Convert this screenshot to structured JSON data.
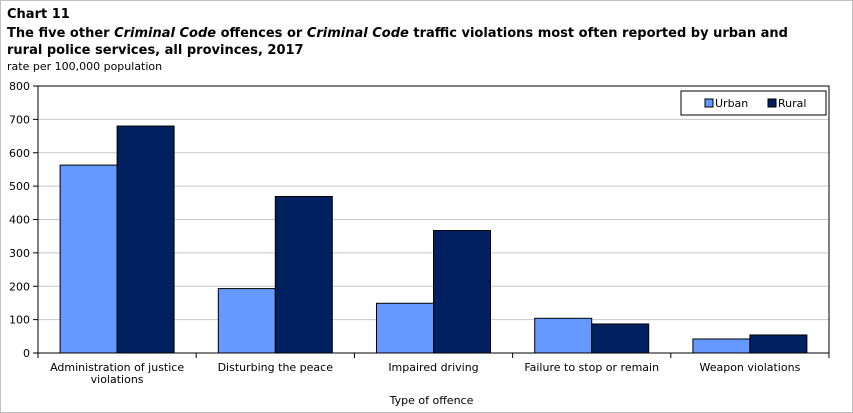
{
  "header": {
    "chart_number": "Chart 11",
    "title_parts": [
      {
        "text": "The five other ",
        "italic": false
      },
      {
        "text": "Criminal Code",
        "italic": true
      },
      {
        "text": " offences or ",
        "italic": false
      },
      {
        "text": "Criminal Code",
        "italic": true
      },
      {
        "text": " traffic violations most often reported by urban and rural police services, all provinces, 2017",
        "italic": false
      }
    ],
    "unit": "rate per 100,000 population"
  },
  "chart_data": {
    "type": "bar",
    "title": "The five other Criminal Code offences or Criminal Code traffic violations most often reported by urban and rural police services, all provinces, 2017",
    "ylabel": "rate per 100,000 population",
    "xlabel": "Type of offence",
    "categories": [
      [
        "Administration of justice",
        "violations"
      ],
      [
        "Disturbing the peace"
      ],
      [
        "Impaired driving"
      ],
      [
        "Failure to stop or remain"
      ],
      [
        "Weapon violations"
      ]
    ],
    "series": [
      {
        "name": "Urban",
        "color": "#6699ff",
        "values": [
          563,
          193,
          149,
          104,
          42
        ]
      },
      {
        "name": "Rural",
        "color": "#002060",
        "values": [
          680,
          469,
          367,
          87,
          54
        ]
      }
    ],
    "ylim": [
      0,
      800
    ],
    "yticks": [
      0,
      100,
      200,
      300,
      400,
      500,
      600,
      700,
      800
    ],
    "grid": true,
    "legend_position": "top-right"
  }
}
